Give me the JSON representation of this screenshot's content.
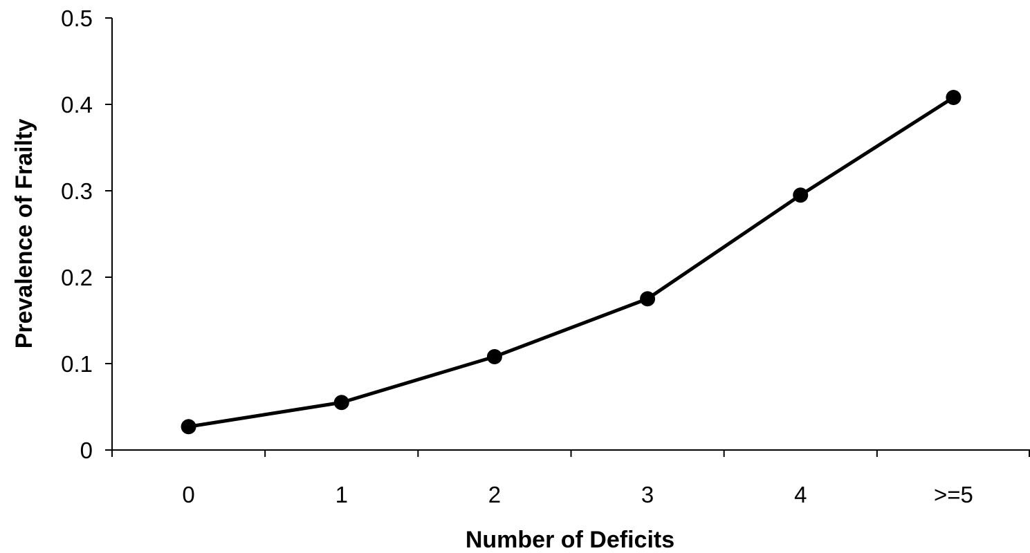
{
  "chart_data": {
    "type": "line",
    "categories": [
      "0",
      "1",
      "2",
      "3",
      "4",
      ">=5"
    ],
    "series": [
      {
        "values": [
          0.027,
          0.055,
          0.108,
          0.175,
          0.295,
          0.408
        ]
      }
    ],
    "title": "",
    "xlabel": "Number of Deficits",
    "ylabel": "Prevalence of Frailty",
    "ylim": [
      0,
      0.5
    ],
    "yticks": [
      "0",
      "0.1",
      "0.2",
      "0.3",
      "0.4",
      "0.5"
    ],
    "grid": false,
    "legend": "none",
    "colors": {
      "line": "#000000",
      "marker": "#000000",
      "axis": "#000000"
    }
  }
}
